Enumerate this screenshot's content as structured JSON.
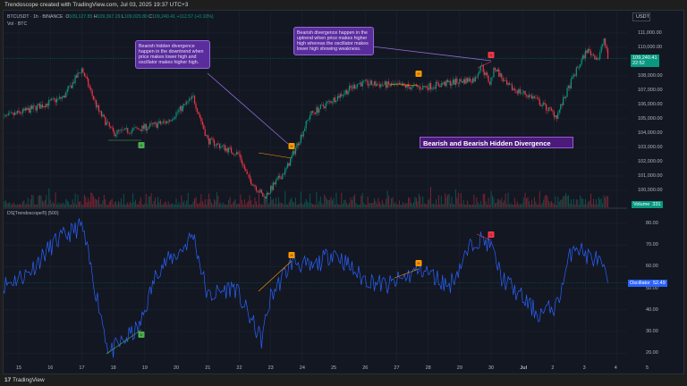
{
  "topbar": {
    "text": "Trendoscope created with TradingView.com, Jul 03, 2025 19:37 UTC+3"
  },
  "legend": {
    "symbol": "BTCUSDT · 1h · BINANCE",
    "o_label": "O",
    "o": "109,127.85",
    "h_label": "H",
    "h": "109,367.29",
    "l_label": "L",
    "l": "109,020.80",
    "c_label": "C",
    "c": "109,240.41",
    "change": "+112.57 (+0.10%)",
    "vol": "Vol · BTC"
  },
  "currency": "USDT",
  "price_axis": [
    "111,000.00",
    "110,000.00",
    "108,000.00",
    "107,000.00",
    "106,000.00",
    "105,000.00",
    "104,000.00",
    "103,000.00",
    "102,000.00",
    "101,000.00",
    "100,000.00"
  ],
  "price_tag": {
    "price": "109,240.41",
    "countdown": "22:52"
  },
  "volume_tag": {
    "label": "Volume",
    "value": "331"
  },
  "indicator": {
    "name": "DS[Trendoscope®] (500)",
    "axis": [
      "80.00",
      "70.00",
      "60.00",
      "50.00",
      "40.00",
      "30.00",
      "20.00"
    ],
    "tag_label": "Oscillator",
    "tag_value": "52.49"
  },
  "time_axis": [
    "15",
    "16",
    "17",
    "18",
    "19",
    "20",
    "21",
    "22",
    "23",
    "24",
    "25",
    "26",
    "27",
    "28",
    "29",
    "30",
    "Jul",
    "2",
    "3",
    "4",
    "5"
  ],
  "callouts": [
    {
      "text": "Bearish hidden divergence happen in the downtrend when price makes lower high and oscillator makes higher high."
    },
    {
      "text": "Bearish divergence happen in the uptrend when price makes higher high whereas the oscillator makes lower high showing weakness."
    }
  ],
  "chart_title": "Bearish and Bearish Hidden Divergence",
  "markers": [
    {
      "label": "D",
      "color": "#4caf50"
    },
    {
      "label": "H",
      "color": "#ff9800"
    },
    {
      "label": "H",
      "color": "#ff9800"
    },
    {
      "label": "D",
      "color": "#f23645"
    }
  ],
  "colors": {
    "up": "#089981",
    "down": "#f23645",
    "osc": "#2962ff",
    "bg": "#131722"
  },
  "bottombar": {
    "brand": "TradingView"
  },
  "chart_data": {
    "type": "candlestick",
    "price_path": [
      [
        "06-14 10",
        105000
      ],
      [
        "06-15 07",
        105600
      ],
      [
        "06-16 10",
        106500
      ],
      [
        "06-17 00",
        108500
      ],
      [
        "06-17 13",
        105500
      ],
      [
        "06-18 00",
        104000
      ],
      [
        "06-18 20",
        104300
      ],
      [
        "06-19 17",
        104800
      ],
      [
        "06-20 13",
        106500
      ],
      [
        "06-21 00",
        103500
      ],
      [
        "06-22 00",
        102500
      ],
      [
        "06-22 06",
        101000
      ],
      [
        "06-22 19",
        99500
      ],
      [
        "06-23 12",
        101500
      ],
      [
        "06-24 00",
        104000
      ],
      [
        "06-24 06",
        105300
      ],
      [
        "06-25 19",
        107500
      ],
      [
        "06-27 19",
        107200
      ],
      [
        "06-29 12",
        107800
      ],
      [
        "06-29 16",
        108800
      ],
      [
        "06-29 23",
        107500
      ],
      [
        "06-30 03",
        108600
      ],
      [
        "06-30 12",
        107300
      ],
      [
        "07-01 08",
        106500
      ],
      [
        "07-02 02",
        105200
      ],
      [
        "07-02 15",
        108000
      ],
      [
        "07-03 01",
        109800
      ],
      [
        "07-03 10",
        109200
      ],
      [
        "07-03 14",
        110600
      ],
      [
        "07-03 17",
        109240
      ]
    ],
    "oscillator_path": [
      [
        "06-14 10",
        50.7
      ],
      [
        "06-15 07",
        57
      ],
      [
        "06-16 03",
        71
      ],
      [
        "06-17 00",
        79
      ],
      [
        "06-17 07",
        59
      ],
      [
        "06-17 21",
        20
      ],
      [
        "06-18 20",
        32
      ],
      [
        "06-19 10",
        59
      ],
      [
        "06-20 03",
        67
      ],
      [
        "06-20 13",
        75
      ],
      [
        "06-21 00",
        46
      ],
      [
        "06-21 20",
        51
      ],
      [
        "06-22 17",
        26
      ],
      [
        "06-23 00",
        46
      ],
      [
        "06-23 17",
        63
      ],
      [
        "06-24 07",
        59
      ],
      [
        "06-25 00",
        67
      ],
      [
        "06-25 21",
        55
      ],
      [
        "06-26 17",
        51
      ],
      [
        "06-27 19",
        59
      ],
      [
        "06-28 16",
        51
      ],
      [
        "06-29 12",
        73
      ],
      [
        "06-29 23",
        71
      ],
      [
        "06-30 08",
        55
      ],
      [
        "07-01 12",
        38
      ],
      [
        "07-02 02",
        42
      ],
      [
        "07-02 15",
        71
      ],
      [
        "07-03 01",
        65
      ],
      [
        "07-03 10",
        63
      ],
      [
        "07-03 17",
        52.49
      ]
    ],
    "price_range": [
      99000,
      111500
    ],
    "osc_range": [
      15,
      85
    ]
  }
}
